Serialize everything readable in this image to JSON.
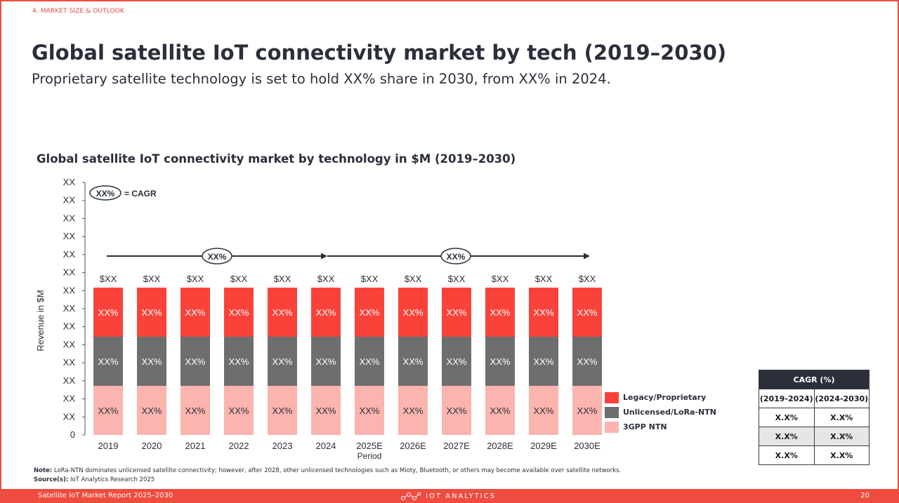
{
  "header": {
    "section": "4. MARKET SIZE & OUTLOOK",
    "title": "Global satellite IoT connectivity market by tech (2019–2030)",
    "subtitle": "Proprietary satellite technology is set to hold XX% share in 2030, from XX% in 2024."
  },
  "chart_data": {
    "type": "bar",
    "stacked": true,
    "title": "Global satellite IoT connectivity market by technology in $M (2019–2030)",
    "xlabel": "Period",
    "ylabel": "Revenue in $M",
    "y_ticks": [
      "0",
      "XX",
      "XX",
      "XX",
      "XX",
      "XX",
      "XX",
      "XX",
      "XX",
      "XX",
      "XX",
      "XX",
      "XX",
      "XX",
      "XX"
    ],
    "categories": [
      "2019",
      "2020",
      "2021",
      "2022",
      "2023",
      "2024",
      "2025E",
      "2026E",
      "2027E",
      "2028E",
      "2029E",
      "2030E"
    ],
    "series": [
      {
        "name": "3GPP NTN",
        "color": "#fbb4ae",
        "labels": [
          "XX%",
          "XX%",
          "XX%",
          "XX%",
          "XX%",
          "XX%",
          "XX%",
          "XX%",
          "XX%",
          "XX%",
          "XX%",
          "XX%"
        ]
      },
      {
        "name": "Unlicensed/LoRa-NTN",
        "color": "#6e6e6e",
        "labels": [
          "XX%",
          "XX%",
          "XX%",
          "XX%",
          "XX%",
          "XX%",
          "XX%",
          "XX%",
          "XX%",
          "XX%",
          "XX%",
          "XX%"
        ]
      },
      {
        "name": "Legacy/Proprietary",
        "color": "#f9433a",
        "labels": [
          "XX%",
          "XX%",
          "XX%",
          "XX%",
          "XX%",
          "XX%",
          "XX%",
          "XX%",
          "XX%",
          "XX%",
          "XX%",
          "XX%"
        ]
      }
    ],
    "totals": [
      "$XX",
      "$XX",
      "$XX",
      "$XX",
      "$XX",
      "$XX",
      "$XX",
      "$XX",
      "$XX",
      "$XX",
      "$XX",
      "$XX"
    ],
    "cagr_key": {
      "badge": "XX%",
      "text": "= CAGR"
    },
    "cagr_arrows": [
      {
        "from": "2019",
        "to": "2024",
        "label": "XX%"
      },
      {
        "from": "2024",
        "to": "2030E",
        "label": "XX%"
      }
    ],
    "legend_order": [
      "Legacy/Proprietary",
      "Unlicensed/LoRa-NTN",
      "3GPP NTN"
    ],
    "legend_position": "right"
  },
  "cagr_table": {
    "title": "CAGR (%)",
    "columns": [
      "(2019-2024)",
      "(2024-2030)"
    ],
    "rows": [
      [
        "X.X%",
        "X.X%"
      ],
      [
        "X.X%",
        "X.X%"
      ],
      [
        "X.X%",
        "X.X%"
      ]
    ]
  },
  "note": {
    "note_label": "Note:",
    "note_text": " LoRa-NTN dominates unlicensed satellite connectivity; however, after 2028, other unlicensed technologies such as Mioty, Bluetooth, or others may become available over satellite networks.",
    "source_label": "Source(s):",
    "source_text": " IoT Analytics Research 2025"
  },
  "footer": {
    "left": "Satellite IoT Market Report 2025–2030",
    "center": "IOT ANALYTICS",
    "page": "20"
  }
}
